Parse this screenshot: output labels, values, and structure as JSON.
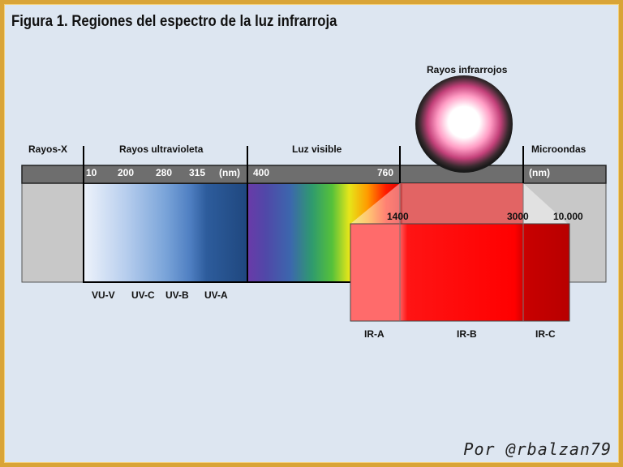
{
  "title": "Figura 1. Regiones del espectro de la luz infrarroja",
  "regions": {
    "xray": "Rayos-X",
    "uv": "Rayos ultravioleta",
    "visible": "Luz visible",
    "infrared": "Rayos infrarrojos",
    "microwave": "Microondas"
  },
  "wavelengths": {
    "w10": "10",
    "w200": "200",
    "w280": "280",
    "w315": "315",
    "unit_left": "(nm)",
    "w400": "400",
    "w760": "760",
    "unit_right": "(nm)",
    "w1400": "1400",
    "w3000": "3000",
    "w10000": "10.000"
  },
  "uv_bands": {
    "vuv": "VU-V",
    "uvc": "UV-C",
    "uvb": "UV-B",
    "uva": "UV-A"
  },
  "ir_bands": {
    "ira": "IR-A",
    "irb": "IR-B",
    "irc": "IR-C"
  },
  "colors": {
    "frame": "#d9a437",
    "background": "#dde6f1",
    "bar": "#6e6e6e",
    "ir_a": "#ff6b6b",
    "ir_b": "#ff0000",
    "ir_c": "#c00000"
  },
  "signature": "Por @rbalzan79"
}
